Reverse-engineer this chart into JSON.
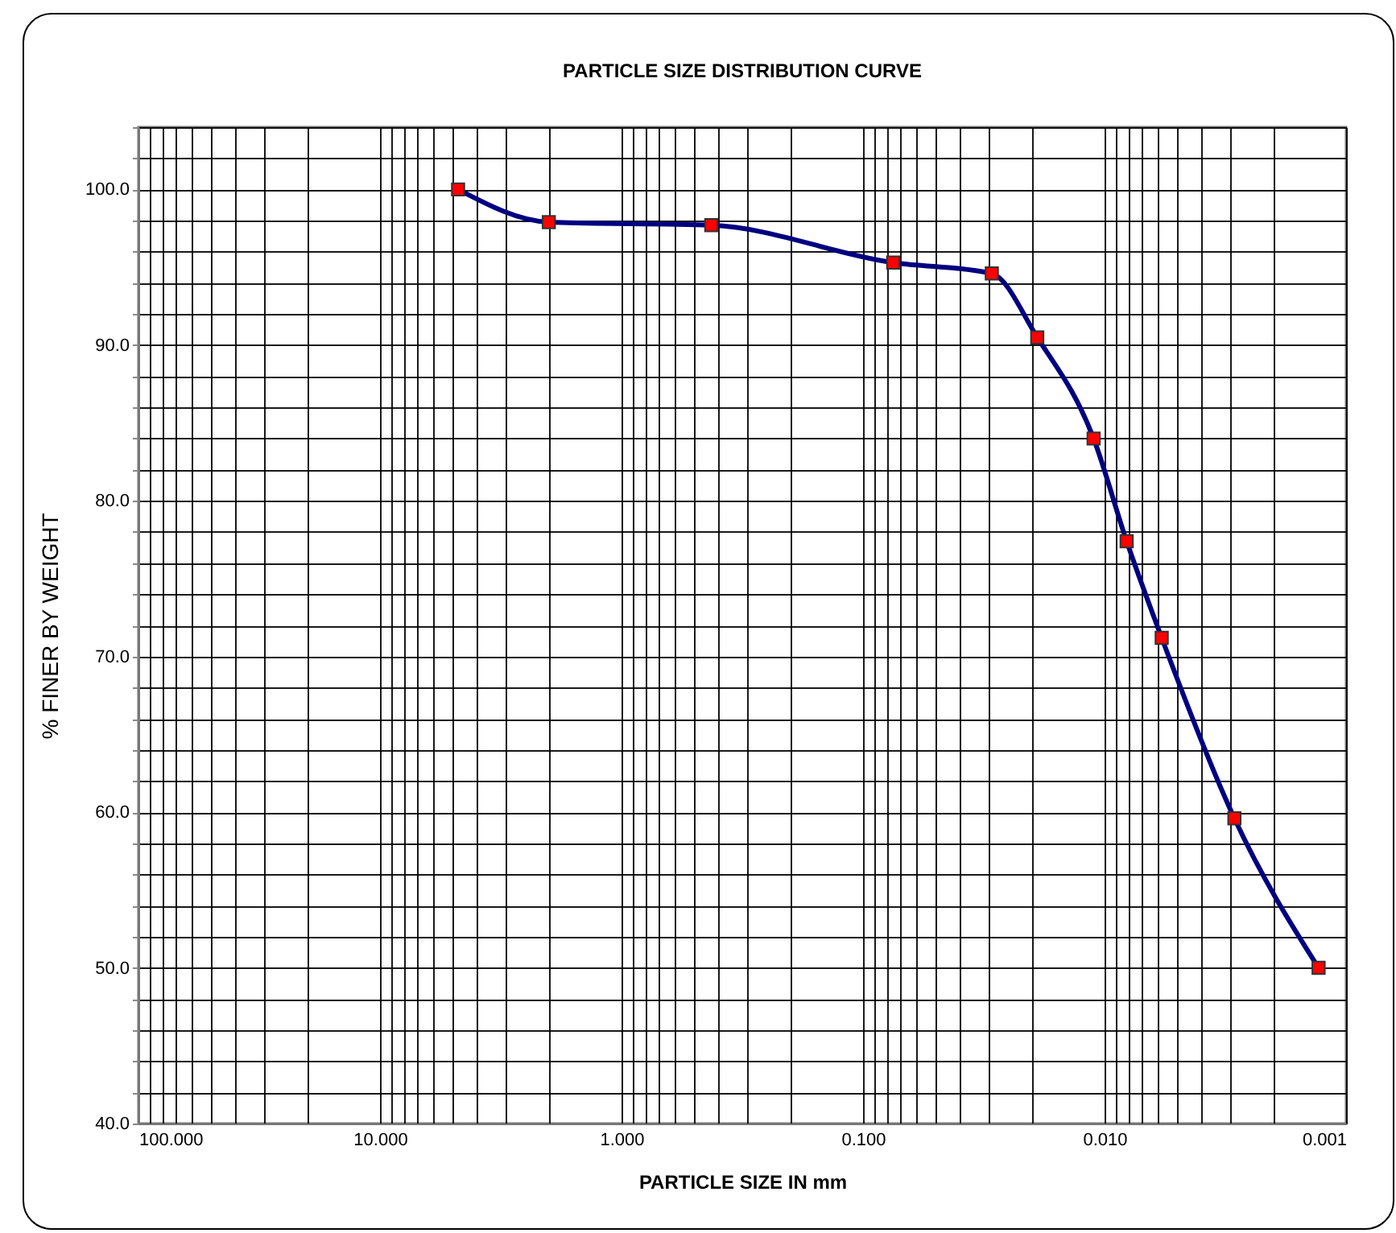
{
  "chart_data": {
    "type": "line",
    "title": "PARTICLE SIZE DISTRIBUTION CURVE",
    "xlabel": "PARTICLE SIZE IN mm",
    "ylabel": "% FINER BY WEIGHT",
    "x": [
      4.75,
      2.0,
      0.425,
      0.075,
      0.0293,
      0.019,
      0.0111,
      0.0081,
      0.0058,
      0.0029,
      0.0013
    ],
    "series": [
      {
        "color": "#000080",
        "values": [
          100,
          97.9,
          97.7,
          95.3,
          94.6,
          90.5,
          84.0,
          77.4,
          71.2,
          59.6,
          50.0
        ]
      }
    ],
    "log": "x",
    "xlim": [
      100,
      0.001
    ],
    "xticks": [
      {
        "value": 100,
        "label": "100.000"
      },
      {
        "value": 10,
        "label": "10.000"
      },
      {
        "value": 1,
        "label": "1.000"
      },
      {
        "value": 0.1,
        "label": "0.100"
      },
      {
        "value": 0.01,
        "label": "0.010"
      },
      {
        "value": 0.001,
        "label": "0.001"
      }
    ],
    "ylim": [
      40,
      104
    ],
    "yticks": [
      {
        "value": 40,
        "label": "40.0"
      },
      {
        "value": 50,
        "label": "50.0"
      },
      {
        "value": 60,
        "label": "60.0"
      },
      {
        "value": 70,
        "label": "70.0"
      },
      {
        "value": 80,
        "label": "80.0"
      },
      {
        "value": 90,
        "label": "90.0"
      },
      {
        "value": 100,
        "label": "100.0"
      }
    ],
    "grid": true,
    "marker": "square",
    "line_style": "solid"
  }
}
